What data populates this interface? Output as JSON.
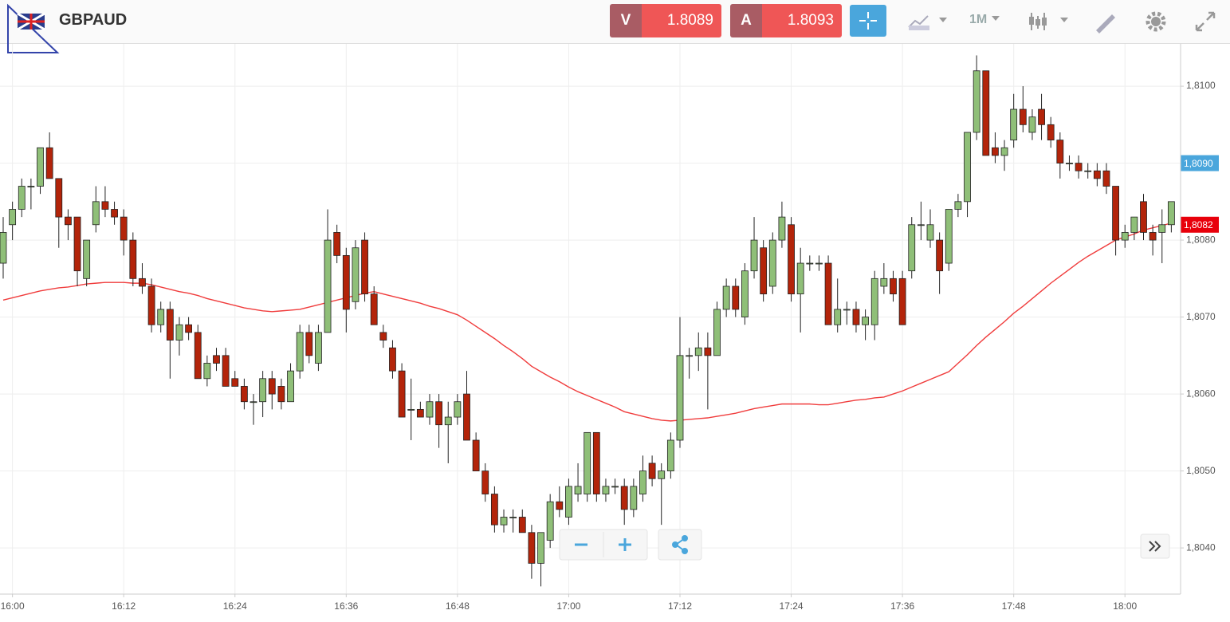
{
  "ui": {
    "symbol": "GBPAUD",
    "bid_label": "V",
    "bid": "1.8089",
    "ask_label": "A",
    "ask": "1.8093",
    "timeframe": "1M"
  },
  "chart_data": {
    "type": "candlestick",
    "categories": [
      null,
      "16:00",
      null,
      null,
      null,
      null,
      null,
      null,
      null,
      null,
      null,
      null,
      null,
      "16:12",
      null,
      null,
      null,
      null,
      null,
      null,
      null,
      null,
      null,
      null,
      null,
      "16:24",
      null,
      null,
      null,
      null,
      null,
      null,
      null,
      null,
      null,
      null,
      null,
      "16:36",
      null,
      null,
      null,
      null,
      null,
      null,
      null,
      null,
      null,
      null,
      null,
      "16:48",
      null,
      null,
      null,
      null,
      null,
      null,
      null,
      null,
      null,
      null,
      null,
      "17:00",
      null,
      null,
      null,
      null,
      null,
      null,
      null,
      null,
      null,
      null,
      null,
      "17:12",
      null,
      null,
      null,
      null,
      null,
      null,
      null,
      null,
      null,
      null,
      null,
      "17:24",
      null,
      null,
      null,
      null,
      null,
      null,
      null,
      null,
      null,
      null,
      null,
      "17:36",
      null,
      null,
      null,
      null,
      null,
      null,
      null,
      null,
      null,
      null,
      null,
      "17:48",
      null,
      null,
      null,
      null,
      null,
      null,
      null,
      null,
      null,
      null,
      null,
      "18:00",
      null,
      null,
      null,
      null,
      null
    ],
    "open": [
      1.8077,
      1.8082,
      1.8084,
      1.8087,
      1.8087,
      1.8092,
      1.8088,
      1.8083,
      1.8083,
      1.8075,
      1.8082,
      1.8085,
      1.8084,
      1.8083,
      1.808,
      1.8075,
      1.8074,
      1.8069,
      1.8071,
      1.8067,
      1.8069,
      1.8068,
      1.8062,
      1.8065,
      1.8065,
      1.8062,
      1.8061,
      1.8059,
      1.8059,
      1.8062,
      1.8061,
      1.8059,
      1.8063,
      1.8068,
      1.8064,
      1.8068,
      1.8081,
      1.8078,
      1.8072,
      1.808,
      1.8073,
      1.8068,
      1.8066,
      1.8063,
      1.8058,
      1.8058,
      1.8057,
      1.8059,
      1.8056,
      1.8057,
      1.806,
      1.8054,
      1.805,
      1.8047,
      1.8043,
      1.8044,
      1.8044,
      1.8042,
      1.8038,
      1.8041,
      1.8046,
      1.8044,
      1.8047,
      1.8047,
      1.8055,
      1.8047,
      1.8048,
      1.8048,
      1.8045,
      1.8047,
      1.8051,
      1.8049,
      1.805,
      1.8054,
      1.8065,
      1.8065,
      1.8066,
      1.8065,
      1.8071,
      1.8074,
      1.807,
      1.8076,
      1.8079,
      1.8074,
      1.808,
      1.8082,
      1.8073,
      1.8077,
      1.8077,
      1.8077,
      1.8069,
      1.8071,
      1.8071,
      1.8069,
      1.8069,
      1.8074,
      1.8075,
      1.8075,
      1.8076,
      1.8082,
      1.808,
      1.808,
      1.8077,
      1.8084,
      1.8085,
      1.8094,
      1.8102,
      1.8092,
      1.8091,
      1.8093,
      1.8097,
      1.8094,
      1.8097,
      1.8095,
      1.8093,
      1.809,
      1.809,
      1.8089,
      1.8089,
      1.8089,
      1.8087,
      1.808,
      1.8081,
      1.8085,
      1.8081,
      1.8081,
      1.8082
    ],
    "high": [
      1.8083,
      1.8085,
      1.8088,
      1.8088,
      1.8092,
      1.8094,
      1.8088,
      1.8084,
      1.8083,
      1.808,
      1.8087,
      1.8087,
      1.8085,
      1.8084,
      1.8081,
      1.8077,
      1.8075,
      1.8072,
      1.8072,
      1.807,
      1.807,
      1.8069,
      1.8065,
      1.8066,
      1.8066,
      1.8063,
      1.8062,
      1.806,
      1.8063,
      1.8063,
      1.8062,
      1.8064,
      1.8069,
      1.8069,
      1.8069,
      1.8084,
      1.8082,
      1.8079,
      1.808,
      1.8081,
      1.8074,
      1.8069,
      1.8067,
      1.8064,
      1.8062,
      1.8059,
      1.806,
      1.806,
      1.8059,
      1.806,
      1.8063,
      1.8055,
      1.8051,
      1.8048,
      1.8045,
      1.8045,
      1.8045,
      1.8043,
      1.8042,
      1.8047,
      1.8048,
      1.8049,
      1.8051,
      1.8055,
      1.8055,
      1.8049,
      1.8049,
      1.8049,
      1.8049,
      1.8052,
      1.8052,
      1.8051,
      1.8055,
      1.807,
      1.8066,
      1.8068,
      1.8068,
      1.8072,
      1.8075,
      1.8075,
      1.8077,
      1.8083,
      1.808,
      1.8081,
      1.8085,
      1.8083,
      1.8079,
      1.8078,
      1.8078,
      1.8078,
      1.8075,
      1.8072,
      1.8072,
      1.8071,
      1.8076,
      1.8077,
      1.8076,
      1.8076,
      1.8083,
      1.8085,
      1.8084,
      1.8081,
      1.8084,
      1.8086,
      1.8094,
      1.8104,
      1.8102,
      1.8094,
      1.8093,
      1.8099,
      1.81,
      1.8097,
      1.8099,
      1.8096,
      1.8094,
      1.8091,
      1.8091,
      1.809,
      1.809,
      1.809,
      1.8087,
      1.8082,
      1.8083,
      1.8086,
      1.8082,
      1.8084,
      1.8085
    ],
    "low": [
      1.8075,
      1.808,
      1.8083,
      1.8084,
      1.8086,
      1.8088,
      1.8079,
      1.808,
      1.8074,
      1.8074,
      1.8081,
      1.8083,
      1.8082,
      1.8078,
      1.8074,
      1.8073,
      1.8068,
      1.8068,
      1.8062,
      1.8065,
      1.8067,
      1.8062,
      1.8061,
      1.8063,
      1.8061,
      1.8061,
      1.8058,
      1.8056,
      1.8057,
      1.8058,
      1.8058,
      1.8059,
      1.8062,
      1.8064,
      1.8063,
      1.8068,
      1.8077,
      1.8068,
      1.8071,
      1.8072,
      1.8069,
      1.8066,
      1.8062,
      1.8057,
      1.8054,
      1.8057,
      1.8056,
      1.8053,
      1.8051,
      1.8056,
      1.8054,
      1.805,
      1.8046,
      1.8042,
      1.8042,
      1.8042,
      1.8042,
      1.8036,
      1.8035,
      1.804,
      1.8044,
      1.8043,
      1.8046,
      1.8046,
      1.8046,
      1.8046,
      1.8047,
      1.8043,
      1.8044,
      1.8046,
      1.8048,
      1.8043,
      1.8049,
      1.8053,
      1.8062,
      1.8063,
      1.8058,
      1.8065,
      1.807,
      1.807,
      1.8069,
      1.8075,
      1.8072,
      1.8073,
      1.8079,
      1.8072,
      1.8068,
      1.8076,
      1.8076,
      1.8069,
      1.8068,
      1.8069,
      1.8068,
      1.8067,
      1.8067,
      1.8073,
      1.8072,
      1.8069,
      1.8075,
      1.808,
      1.8079,
      1.8073,
      1.8076,
      1.8083,
      1.8083,
      1.8093,
      1.8091,
      1.809,
      1.8089,
      1.8092,
      1.8094,
      1.8093,
      1.8093,
      1.8092,
      1.8088,
      1.8089,
      1.8088,
      1.8088,
      1.8087,
      1.8086,
      1.8078,
      1.8079,
      1.808,
      1.808,
      1.8078,
      1.8077,
      1.8081
    ],
    "close": [
      1.8081,
      1.8084,
      1.8087,
      1.8087,
      1.8092,
      1.8088,
      1.8083,
      1.8082,
      1.8076,
      1.808,
      1.8085,
      1.8084,
      1.8083,
      1.808,
      1.8075,
      1.8074,
      1.8069,
      1.8071,
      1.8067,
      1.8069,
      1.8068,
      1.8062,
      1.8064,
      1.8064,
      1.8061,
      1.8061,
      1.8059,
      1.8059,
      1.8062,
      1.806,
      1.8059,
      1.8063,
      1.8068,
      1.8065,
      1.8068,
      1.808,
      1.8078,
      1.8071,
      1.8079,
      1.8073,
      1.8069,
      1.8067,
      1.8063,
      1.8057,
      1.8058,
      1.8057,
      1.8059,
      1.8056,
      1.8057,
      1.8059,
      1.8054,
      1.805,
      1.8047,
      1.8043,
      1.8044,
      1.8044,
      1.8042,
      1.8038,
      1.8042,
      1.8046,
      1.8045,
      1.8048,
      1.8048,
      1.8055,
      1.8047,
      1.8048,
      1.8048,
      1.8045,
      1.8048,
      1.805,
      1.8049,
      1.805,
      1.8054,
      1.8065,
      1.8065,
      1.8066,
      1.8065,
      1.8071,
      1.8074,
      1.8071,
      1.8076,
      1.808,
      1.8073,
      1.808,
      1.8083,
      1.8073,
      1.8077,
      1.8077,
      1.8077,
      1.8069,
      1.8071,
      1.8071,
      1.8069,
      1.807,
      1.8075,
      1.8075,
      1.8073,
      1.8069,
      1.8082,
      1.8082,
      1.8082,
      1.8076,
      1.8084,
      1.8085,
      1.8094,
      1.8102,
      1.8091,
      1.8091,
      1.8092,
      1.8097,
      1.8095,
      1.8096,
      1.8095,
      1.8093,
      1.809,
      1.809,
      1.8089,
      1.8089,
      1.8088,
      1.8087,
      1.808,
      1.8081,
      1.8083,
      1.8081,
      1.808,
      1.8082,
      1.8085
    ],
    "up_color": "#8fbf78",
    "down_color": "#b3240a",
    "moving_average": {
      "color": "#f03c3c",
      "values": [
        1.80722,
        1.80725,
        1.80728,
        1.80731,
        1.80734,
        1.80736,
        1.80738,
        1.80739,
        1.80741,
        1.80743,
        1.80744,
        1.80745,
        1.80745,
        1.80745,
        1.80744,
        1.80744,
        1.80742,
        1.80739,
        1.80736,
        1.80733,
        1.80731,
        1.80728,
        1.80724,
        1.80721,
        1.80718,
        1.80715,
        1.80712,
        1.8071,
        1.80708,
        1.80707,
        1.80708,
        1.80709,
        1.8071,
        1.80713,
        1.80716,
        1.80719,
        1.80722,
        1.80725,
        1.80728,
        1.80731,
        1.80733,
        1.8073,
        1.80727,
        1.80724,
        1.80721,
        1.80718,
        1.80714,
        1.80711,
        1.80707,
        1.80703,
        1.80696,
        1.80688,
        1.8068,
        1.80672,
        1.80663,
        1.80655,
        1.80646,
        1.80636,
        1.80629,
        1.80622,
        1.80616,
        1.80609,
        1.80603,
        1.80598,
        1.80593,
        1.80588,
        1.80583,
        1.80577,
        1.80574,
        1.80571,
        1.80568,
        1.80566,
        1.80565,
        1.80566,
        1.80567,
        1.80568,
        1.80569,
        1.80571,
        1.80573,
        1.80575,
        1.80578,
        1.80581,
        1.80583,
        1.80585,
        1.80587,
        1.80587,
        1.80587,
        1.80587,
        1.80586,
        1.80586,
        1.80588,
        1.8059,
        1.80592,
        1.80593,
        1.80595,
        1.80596,
        1.806,
        1.80604,
        1.80609,
        1.80614,
        1.80619,
        1.80624,
        1.80629,
        1.8064,
        1.80651,
        1.80663,
        1.80674,
        1.80684,
        1.80694,
        1.80705,
        1.80714,
        1.80724,
        1.80734,
        1.80744,
        1.80753,
        1.80762,
        1.80771,
        1.80779,
        1.80786,
        1.80793,
        1.808,
        1.80804,
        1.80808,
        1.80813,
        1.80816,
        1.80819,
        1.80822
      ]
    },
    "ylim": [
      1.8034,
      1.81055
    ],
    "yticks": [
      {
        "value": 1.804,
        "label": "1,8040"
      },
      {
        "value": 1.805,
        "label": "1,8050"
      },
      {
        "value": 1.806,
        "label": "1,8060"
      },
      {
        "value": 1.807,
        "label": "1,8070"
      },
      {
        "value": 1.808,
        "label": "1,8080"
      },
      {
        "value": 1.809,
        "label": "1,8090"
      },
      {
        "value": 1.81,
        "label": "1,8100"
      }
    ],
    "price_tags": [
      {
        "value": 1.809,
        "label": "1,8090",
        "color": "#4aa6dc"
      },
      {
        "value": 1.8082,
        "label": "1,8082",
        "color": "#e8000b"
      }
    ],
    "grid": true
  }
}
